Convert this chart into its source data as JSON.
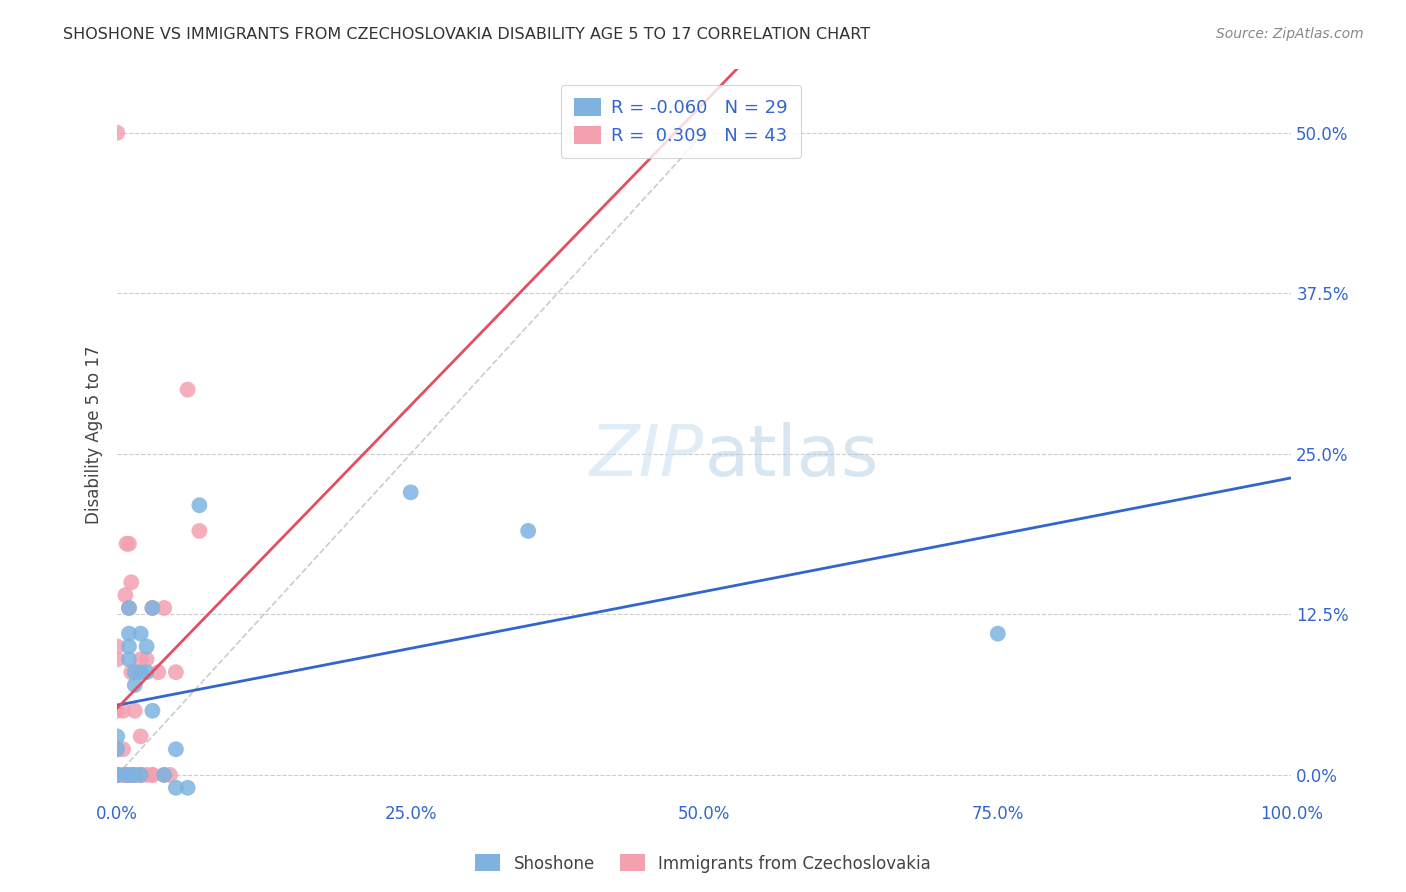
{
  "title": "SHOSHONE VS IMMIGRANTS FROM CZECHOSLOVAKIA DISABILITY AGE 5 TO 17 CORRELATION CHART",
  "source": "Source: ZipAtlas.com",
  "ylabel": "Disability Age 5 to 17",
  "xlim": [
    0.0,
    1.0
  ],
  "ylim": [
    -0.02,
    0.55
  ],
  "xticks": [
    0.0,
    0.25,
    0.5,
    0.75,
    1.0
  ],
  "xtick_labels": [
    "0.0%",
    "25.0%",
    "50.0%",
    "75.0%",
    "100.0%"
  ],
  "yticks": [
    0.0,
    0.125,
    0.25,
    0.375,
    0.5
  ],
  "ytick_labels": [
    "0.0%",
    "12.5%",
    "25.0%",
    "37.5%",
    "50.0%"
  ],
  "shoshone_color": "#7EB3E0",
  "immigrant_color": "#F4A0B0",
  "shoshone_line_color": "#3366CC",
  "immigrant_line_color": "#E05060",
  "dashed_line_color": "#CCCCCC",
  "R_shoshone": -0.06,
  "N_shoshone": 29,
  "R_immigrant": 0.309,
  "N_immigrant": 43,
  "shoshone_x": [
    0.0,
    0.0,
    0.0,
    0.0,
    0.0,
    0.008,
    0.01,
    0.01,
    0.01,
    0.01,
    0.012,
    0.015,
    0.015,
    0.015,
    0.02,
    0.02,
    0.02,
    0.025,
    0.025,
    0.03,
    0.03,
    0.04,
    0.05,
    0.05,
    0.06,
    0.07,
    0.25,
    0.35,
    0.75
  ],
  "shoshone_y": [
    0.0,
    0.0,
    0.0,
    0.02,
    0.03,
    0.0,
    0.09,
    0.1,
    0.11,
    0.13,
    0.0,
    0.0,
    0.07,
    0.08,
    0.0,
    0.08,
    0.11,
    0.08,
    0.1,
    0.05,
    0.13,
    0.0,
    0.02,
    -0.01,
    -0.01,
    0.21,
    0.22,
    0.19,
    0.11
  ],
  "immigrant_x": [
    0.0,
    0.0,
    0.0,
    0.0,
    0.0,
    0.0,
    0.0,
    0.0,
    0.005,
    0.005,
    0.005,
    0.005,
    0.007,
    0.007,
    0.008,
    0.008,
    0.01,
    0.01,
    0.01,
    0.01,
    0.012,
    0.012,
    0.012,
    0.015,
    0.015,
    0.015,
    0.015,
    0.02,
    0.02,
    0.02,
    0.02,
    0.025,
    0.025,
    0.03,
    0.03,
    0.03,
    0.035,
    0.04,
    0.04,
    0.045,
    0.05,
    0.06,
    0.07
  ],
  "immigrant_y": [
    0.0,
    0.0,
    0.0,
    0.02,
    0.05,
    0.09,
    0.1,
    0.5,
    0.0,
    0.0,
    0.02,
    0.05,
    0.0,
    0.14,
    0.0,
    0.18,
    0.0,
    0.0,
    0.13,
    0.18,
    0.0,
    0.08,
    0.15,
    0.0,
    0.0,
    0.05,
    0.08,
    0.0,
    0.0,
    0.03,
    0.09,
    0.0,
    0.09,
    0.0,
    0.0,
    0.13,
    0.08,
    0.0,
    0.13,
    0.0,
    0.08,
    0.3,
    0.19
  ],
  "legend_label_shoshone": "R = -0.060   N = 29",
  "legend_label_immigrant": "R =  0.309   N = 43",
  "bottom_label_shoshone": "Shoshone",
  "bottom_label_immigrant": "Immigrants from Czechoslovakia"
}
